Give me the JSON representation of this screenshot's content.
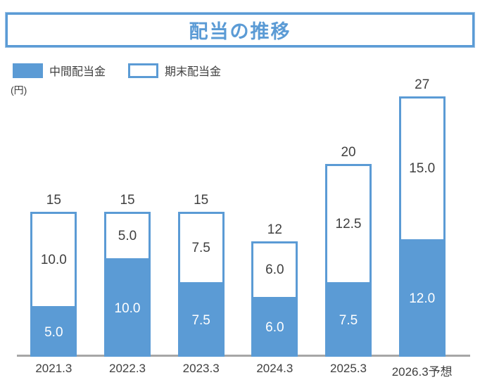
{
  "title": "配当の推移",
  "unit_label": "(円)",
  "legend": {
    "interim_label": "中間配当金",
    "yearend_label": "期末配当金"
  },
  "colors": {
    "accent_blue": "#5b9bd5",
    "text_dark": "#404040",
    "axis_gray": "#a6a6a6",
    "interim_fill": "#5b9bd5",
    "yearend_fill": "#ffffff"
  },
  "chart_data": {
    "type": "bar",
    "stacked": true,
    "title": "配当の推移",
    "ylabel": "(円)",
    "grid": false,
    "legend_position": "top-left",
    "categories": [
      "2021.3",
      "2022.3",
      "2023.3",
      "2024.3",
      "2025.3",
      "2026.3予想"
    ],
    "series": [
      {
        "name": "中間配当金",
        "values": [
          5.0,
          10.0,
          7.5,
          6.0,
          7.5,
          12.0
        ],
        "labels": [
          "5.0",
          "10.0",
          "7.5",
          "6.0",
          "7.5",
          "12.0"
        ]
      },
      {
        "name": "期末配当金",
        "values": [
          10.0,
          5.0,
          7.5,
          6.0,
          12.5,
          15.0
        ],
        "labels": [
          "10.0",
          "5.0",
          "7.5",
          "6.0",
          "12.5",
          "15.0"
        ]
      }
    ],
    "totals": [
      "15",
      "15",
      "15",
      "12",
      "20",
      "27"
    ],
    "ylim": [
      0,
      27
    ]
  }
}
